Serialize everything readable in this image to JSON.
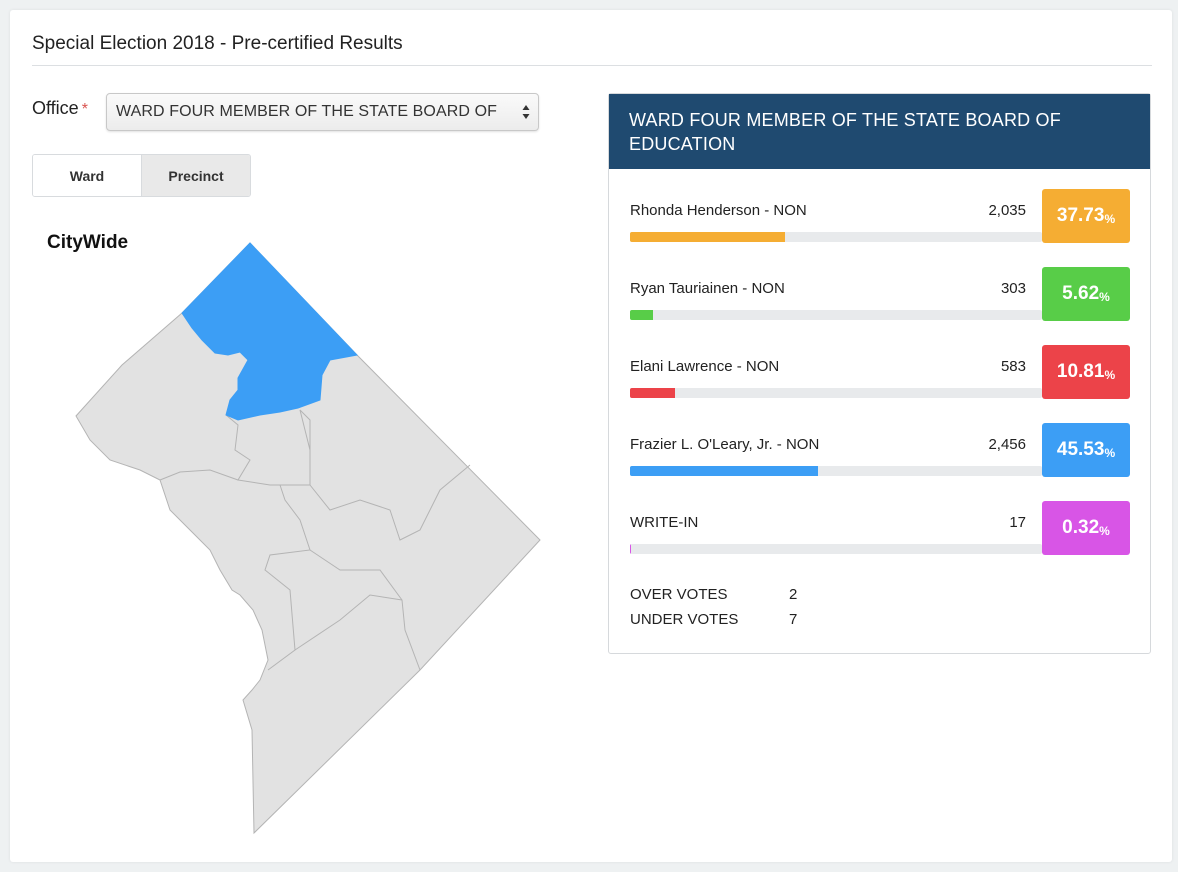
{
  "page": {
    "title": "Special Election 2018 - Pre-certified Results"
  },
  "office": {
    "label": "Office",
    "required_mark": "*",
    "selected": "WARD FOUR MEMBER OF THE STATE BOARD OF"
  },
  "view_toggle": {
    "ward_label": "Ward",
    "precinct_label": "Precinct",
    "active": "Precinct"
  },
  "map": {
    "label": "CityWide",
    "selected_ward_color": "#3c9ef5",
    "default_ward_color": "#e2e2e2"
  },
  "results": {
    "header": "WARD FOUR MEMBER OF THE STATE BOARD OF EDUCATION",
    "header_color": "#1f4a70",
    "candidates": [
      {
        "name": "Rhonda Henderson - NON",
        "votes": "2,035",
        "percent": "37.73",
        "pct_value": 37.73,
        "color": "#f5ad33"
      },
      {
        "name": "Ryan Tauriainen - NON",
        "votes": "303",
        "percent": "5.62",
        "pct_value": 5.62,
        "color": "#58cd48"
      },
      {
        "name": "Elani Lawrence - NON",
        "votes": "583",
        "percent": "10.81",
        "pct_value": 10.81,
        "color": "#ec4349"
      },
      {
        "name": "Frazier L. O'Leary, Jr. - NON",
        "votes": "2,456",
        "percent": "45.53",
        "pct_value": 45.53,
        "color": "#3c9ef5"
      },
      {
        "name": "WRITE-IN",
        "votes": "17",
        "percent": "0.32",
        "pct_value": 0.32,
        "color": "#d855e6"
      }
    ],
    "percent_sign": "%",
    "over_votes_label": "OVER VOTES",
    "over_votes": "2",
    "under_votes_label": "UNDER VOTES",
    "under_votes": "7"
  }
}
